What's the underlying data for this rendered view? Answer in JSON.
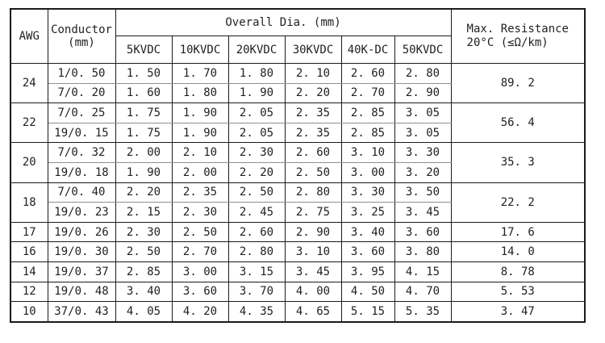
{
  "page": {
    "background_color": "#ffffff",
    "border_color": "#1a1a1a",
    "subrow_line_color": "#8f8f8f",
    "text_color": "#1f1f1f"
  },
  "table": {
    "header": {
      "awg_label": "AWG",
      "conductor_label": "Conductor",
      "conductor_unit": "(mm)",
      "overall_dia_label": "Overall Dia. (mm)",
      "voltage_columns": [
        "5KVDC",
        "10KVDC",
        "20KVDC",
        "30KVDC",
        "40K-DC",
        "50KVDC"
      ],
      "resistance_label": "Max. Resistance",
      "resistance_condition": "20°C (≤Ω/km)"
    },
    "groups": [
      {
        "awg": "24",
        "resistance": "89.2",
        "rows": [
          {
            "conductor": "1/0.50",
            "dia": [
              "1.50",
              "1.70",
              "1.80",
              "2.10",
              "2.60",
              "2.80"
            ]
          },
          {
            "conductor": "7/0.20",
            "dia": [
              "1.60",
              "1.80",
              "1.90",
              "2.20",
              "2.70",
              "2.90"
            ]
          }
        ]
      },
      {
        "awg": "22",
        "resistance": "56.4",
        "rows": [
          {
            "conductor": "7/0.25",
            "dia": [
              "1.75",
              "1.90",
              "2.05",
              "2.35",
              "2.85",
              "3.05"
            ]
          },
          {
            "conductor": "19/0.15",
            "dia": [
              "1.75",
              "1.90",
              "2.05",
              "2.35",
              "2.85",
              "3.05"
            ]
          }
        ]
      },
      {
        "awg": "20",
        "resistance": "35.3",
        "rows": [
          {
            "conductor": "7/0.32",
            "dia": [
              "2.00",
              "2.10",
              "2.30",
              "2.60",
              "3.10",
              "3.30"
            ]
          },
          {
            "conductor": "19/0.18",
            "dia": [
              "1.90",
              "2.00",
              "2.20",
              "2.50",
              "3.00",
              "3.20"
            ]
          }
        ]
      },
      {
        "awg": "18",
        "resistance": "22.2",
        "rows": [
          {
            "conductor": "7/0.40",
            "dia": [
              "2.20",
              "2.35",
              "2.50",
              "2.80",
              "3.30",
              "3.50"
            ]
          },
          {
            "conductor": "19/0.23",
            "dia": [
              "2.15",
              "2.30",
              "2.45",
              "2.75",
              "3.25",
              "3.45"
            ]
          }
        ]
      },
      {
        "awg": "17",
        "resistance": "17.6",
        "rows": [
          {
            "conductor": "19/0.26",
            "dia": [
              "2.30",
              "2.50",
              "2.60",
              "2.90",
              "3.40",
              "3.60"
            ]
          }
        ]
      },
      {
        "awg": "16",
        "resistance": "14.0",
        "rows": [
          {
            "conductor": "19/0.30",
            "dia": [
              "2.50",
              "2.70",
              "2.80",
              "3.10",
              "3.60",
              "3.80"
            ]
          }
        ]
      },
      {
        "awg": "14",
        "resistance": "8.78",
        "rows": [
          {
            "conductor": "19/0.37",
            "dia": [
              "2.85",
              "3.00",
              "3.15",
              "3.45",
              "3.95",
              "4.15"
            ]
          }
        ]
      },
      {
        "awg": "12",
        "resistance": "5.53",
        "rows": [
          {
            "conductor": "19/0.48",
            "dia": [
              "3.40",
              "3.60",
              "3.70",
              "4.00",
              "4.50",
              "4.70"
            ]
          }
        ]
      },
      {
        "awg": "10",
        "resistance": "3.47",
        "rows": [
          {
            "conductor": "37/0.43",
            "dia": [
              "4.05",
              "4.20",
              "4.35",
              "4.65",
              "5.15",
              "5.35"
            ]
          }
        ]
      }
    ]
  }
}
